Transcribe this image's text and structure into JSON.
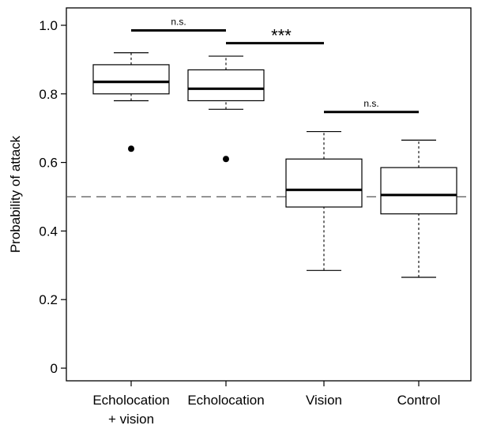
{
  "chart_data": {
    "type": "boxplot",
    "title": "",
    "xlabel": "",
    "ylabel": "Probability of attack",
    "ylim": [
      0,
      1.04
    ],
    "yticks": [
      0,
      0.2,
      0.4,
      0.6,
      0.8,
      1.0
    ],
    "ytick_labels": [
      "0",
      "0.2",
      "0.4",
      "0.6",
      "0.8",
      "1.0"
    ],
    "categories": [
      [
        "Echolocation",
        "+ vision"
      ],
      [
        "Echolocation"
      ],
      [
        "Vision"
      ],
      [
        "Control"
      ]
    ],
    "boxes": [
      {
        "whisker_low": 0.78,
        "q1": 0.8,
        "median": 0.835,
        "q3": 0.885,
        "whisker_high": 0.92,
        "outliers": [
          0.64
        ]
      },
      {
        "whisker_low": 0.755,
        "q1": 0.78,
        "median": 0.815,
        "q3": 0.87,
        "whisker_high": 0.91,
        "outliers": [
          0.61
        ]
      },
      {
        "whisker_low": 0.285,
        "q1": 0.47,
        "median": 0.52,
        "q3": 0.61,
        "whisker_high": 0.69,
        "outliers": []
      },
      {
        "whisker_low": 0.265,
        "q1": 0.45,
        "median": 0.505,
        "q3": 0.585,
        "whisker_high": 0.665,
        "outliers": []
      }
    ],
    "reference_line": {
      "y": 0.5,
      "style": "dashed"
    },
    "significance": [
      {
        "from": 0,
        "to": 1,
        "y": 0.985,
        "label": "n.s."
      },
      {
        "from": 1,
        "to": 2,
        "y": 0.948,
        "label": "***"
      },
      {
        "from": 2,
        "to": 3,
        "y": 0.747,
        "label": "n.s."
      }
    ],
    "grid": false,
    "legend": "none"
  }
}
